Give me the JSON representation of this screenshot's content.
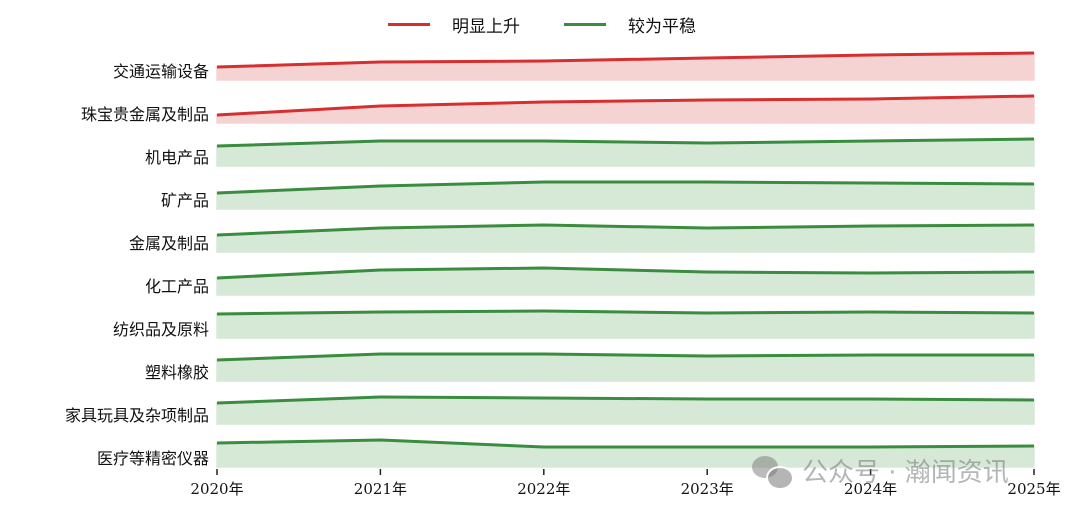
{
  "chart_data": {
    "type": "area",
    "title": "",
    "xlabel": "",
    "ylabel": "",
    "categories": [
      "2020年",
      "2021年",
      "2022年",
      "2023年",
      "2024年",
      "2025年"
    ],
    "legend": [
      {
        "name": "明显上升",
        "color": "#d62f2f",
        "fill": "#f5d3d3"
      },
      {
        "name": "较为平稳",
        "color": "#3a8c3f",
        "fill": "#d6e8d6"
      }
    ],
    "legend_position": "top",
    "grid": false,
    "value_note": "relative index height of each ridge row (0 = row baseline)",
    "series": [
      {
        "name": "交通运输设备",
        "group": "明显上升",
        "values": [
          13,
          18,
          19,
          22,
          25,
          27
        ]
      },
      {
        "name": "珠宝贵金属及制品",
        "group": "明显上升",
        "values": [
          8,
          17,
          21,
          23,
          24,
          27
        ]
      },
      {
        "name": "机电产品",
        "group": "较为平稳",
        "values": [
          20,
          25,
          25,
          23,
          25,
          27
        ]
      },
      {
        "name": "矿产品",
        "group": "较为平稳",
        "values": [
          16,
          23,
          27,
          27,
          26,
          25
        ]
      },
      {
        "name": "金属及制品",
        "group": "较为平稳",
        "values": [
          17,
          24,
          27,
          24,
          26,
          27
        ]
      },
      {
        "name": "化工产品",
        "group": "较为平稳",
        "values": [
          17,
          25,
          27,
          23,
          22,
          23
        ]
      },
      {
        "name": "纺织品及原料",
        "group": "较为平稳",
        "values": [
          24,
          26,
          27,
          25,
          26,
          25
        ]
      },
      {
        "name": "塑料橡胶",
        "group": "较为平稳",
        "values": [
          21,
          27,
          27,
          25,
          26,
          26
        ]
      },
      {
        "name": "家具玩具及杂项制品",
        "group": "较为平稳",
        "values": [
          21,
          27,
          26,
          25,
          25,
          24
        ]
      },
      {
        "name": "医疗等精密仪器",
        "group": "较为平稳",
        "values": [
          24,
          27,
          20,
          20,
          20,
          21
        ]
      }
    ]
  },
  "watermark": {
    "text": "公众号 · 瀚闻资讯",
    "icon": "wechat-icon"
  }
}
